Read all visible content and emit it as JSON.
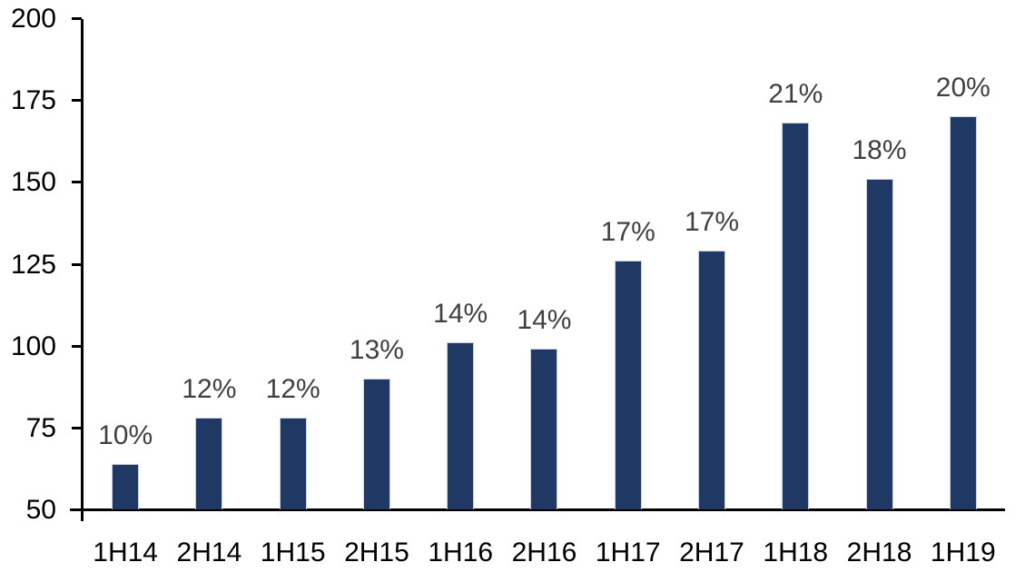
{
  "chart_data": {
    "type": "bar",
    "title": "",
    "categories": [
      "1H14",
      "2H14",
      "1H15",
      "2H15",
      "1H16",
      "2H16",
      "1H17",
      "2H17",
      "1H18",
      "2H18",
      "1H19"
    ],
    "values": [
      64,
      78,
      78,
      90,
      101,
      99,
      126,
      129,
      168,
      151,
      170
    ],
    "bar_labels": [
      "10%",
      "12%",
      "12%",
      "13%",
      "14%",
      "14%",
      "17%",
      "17%",
      "21%",
      "18%",
      "20%"
    ],
    "xlabel": "",
    "ylabel": "",
    "ylim": [
      50,
      200
    ],
    "yticks": [
      50,
      75,
      100,
      125,
      150,
      175,
      200
    ],
    "grid": false,
    "legend_position": "none",
    "colors": {
      "bar": "#1F3864",
      "bar_border": "#C8D1E0",
      "data_label": "#404040",
      "tick_label": "#000000",
      "axis": "#000000",
      "background": "#FFFFFF"
    }
  }
}
